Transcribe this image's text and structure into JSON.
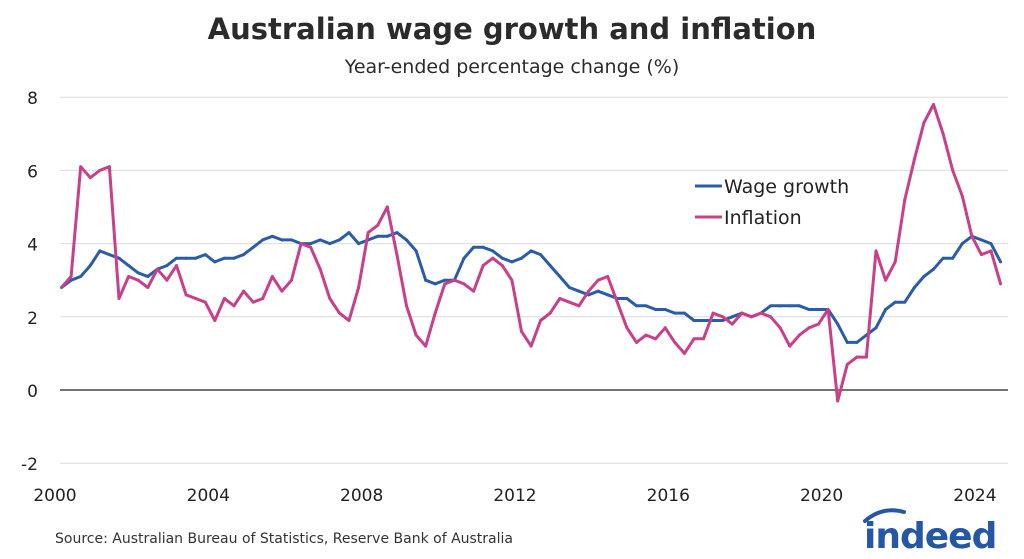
{
  "chart_data": {
    "type": "line",
    "title": "Australian wage growth and inflation",
    "subtitle": "Year-ended percentage change (%)",
    "xlabel": "",
    "ylabel": "",
    "ylim": [
      -2,
      8
    ],
    "yticks": [
      "8",
      "6",
      "4",
      "2",
      "0",
      "-2"
    ],
    "xticks": [
      "2000",
      "2004",
      "2008",
      "2012",
      "2016",
      "2020",
      "2024"
    ],
    "xlim": [
      2000,
      2024.9
    ],
    "grid": true,
    "legend_position": "upper-right-center",
    "x": [
      "2000Q1",
      "2000Q2",
      "2000Q3",
      "2000Q4",
      "2001Q1",
      "2001Q2",
      "2001Q3",
      "2001Q4",
      "2002Q1",
      "2002Q2",
      "2002Q3",
      "2002Q4",
      "2003Q1",
      "2003Q2",
      "2003Q3",
      "2003Q4",
      "2004Q1",
      "2004Q2",
      "2004Q3",
      "2004Q4",
      "2005Q1",
      "2005Q2",
      "2005Q3",
      "2005Q4",
      "2006Q1",
      "2006Q2",
      "2006Q3",
      "2006Q4",
      "2007Q1",
      "2007Q2",
      "2007Q3",
      "2007Q4",
      "2008Q1",
      "2008Q2",
      "2008Q3",
      "2008Q4",
      "2009Q1",
      "2009Q2",
      "2009Q3",
      "2009Q4",
      "2010Q1",
      "2010Q2",
      "2010Q3",
      "2010Q4",
      "2011Q1",
      "2011Q2",
      "2011Q3",
      "2011Q4",
      "2012Q1",
      "2012Q2",
      "2012Q3",
      "2012Q4",
      "2013Q1",
      "2013Q2",
      "2013Q3",
      "2013Q4",
      "2014Q1",
      "2014Q2",
      "2014Q3",
      "2014Q4",
      "2015Q1",
      "2015Q2",
      "2015Q3",
      "2015Q4",
      "2016Q1",
      "2016Q2",
      "2016Q3",
      "2016Q4",
      "2017Q1",
      "2017Q2",
      "2017Q3",
      "2017Q4",
      "2018Q1",
      "2018Q2",
      "2018Q3",
      "2018Q4",
      "2019Q1",
      "2019Q2",
      "2019Q3",
      "2019Q4",
      "2020Q1",
      "2020Q2",
      "2020Q3",
      "2020Q4",
      "2021Q1",
      "2021Q2",
      "2021Q3",
      "2021Q4",
      "2022Q1",
      "2022Q2",
      "2022Q3",
      "2022Q4",
      "2023Q1",
      "2023Q2",
      "2023Q3",
      "2023Q4",
      "2024Q1",
      "2024Q2",
      "2024Q3"
    ],
    "series": [
      {
        "name": "Wage growth",
        "color": "#2a5caa",
        "values": [
          2.8,
          3.0,
          3.1,
          3.4,
          3.8,
          3.7,
          3.6,
          3.4,
          3.2,
          3.1,
          3.3,
          3.4,
          3.6,
          3.6,
          3.6,
          3.7,
          3.5,
          3.6,
          3.6,
          3.7,
          3.9,
          4.1,
          4.2,
          4.1,
          4.1,
          4.0,
          4.0,
          4.1,
          4.0,
          4.1,
          4.3,
          4.0,
          4.1,
          4.2,
          4.2,
          4.3,
          4.1,
          3.8,
          3.0,
          2.9,
          3.0,
          3.0,
          3.6,
          3.9,
          3.9,
          3.8,
          3.6,
          3.5,
          3.6,
          3.8,
          3.7,
          3.4,
          3.1,
          2.8,
          2.7,
          2.6,
          2.7,
          2.6,
          2.5,
          2.5,
          2.3,
          2.3,
          2.2,
          2.2,
          2.1,
          2.1,
          1.9,
          1.9,
          1.9,
          1.9,
          2.0,
          2.1,
          2.0,
          2.1,
          2.3,
          2.3,
          2.3,
          2.3,
          2.2,
          2.2,
          2.2,
          1.8,
          1.3,
          1.3,
          1.5,
          1.7,
          2.2,
          2.4,
          2.4,
          2.8,
          3.1,
          3.3,
          3.6,
          3.6,
          4.0,
          4.2,
          4.1,
          4.0,
          3.5
        ]
      },
      {
        "name": "Inflation",
        "color": "#c93f8a",
        "values": [
          2.8,
          3.1,
          6.1,
          5.8,
          6.0,
          6.1,
          2.5,
          3.1,
          3.0,
          2.8,
          3.3,
          3.0,
          3.4,
          2.6,
          2.5,
          2.4,
          1.9,
          2.5,
          2.3,
          2.7,
          2.4,
          2.5,
          3.1,
          2.7,
          3.0,
          4.0,
          3.9,
          3.3,
          2.5,
          2.1,
          1.9,
          2.8,
          4.3,
          4.5,
          5.0,
          3.7,
          2.3,
          1.5,
          1.2,
          2.1,
          2.9,
          3.0,
          2.9,
          2.7,
          3.4,
          3.6,
          3.4,
          3.0,
          1.6,
          1.2,
          1.9,
          2.1,
          2.5,
          2.4,
          2.3,
          2.7,
          3.0,
          3.1,
          2.4,
          1.7,
          1.3,
          1.5,
          1.4,
          1.7,
          1.3,
          1.0,
          1.4,
          1.4,
          2.1,
          2.0,
          1.8,
          2.1,
          2.0,
          2.1,
          2.0,
          1.7,
          1.2,
          1.5,
          1.7,
          1.8,
          2.2,
          -0.3,
          0.7,
          0.9,
          0.9,
          3.8,
          3.0,
          3.5,
          5.2,
          6.3,
          7.3,
          7.8,
          7.0,
          6.0,
          5.3,
          4.2,
          3.7,
          3.8,
          2.9
        ]
      }
    ]
  },
  "footer": {
    "source": "Source: Australian Bureau of Statistics, Reserve Bank of Australia",
    "logo_text": "indeed",
    "logo_color": "#2557a7"
  }
}
